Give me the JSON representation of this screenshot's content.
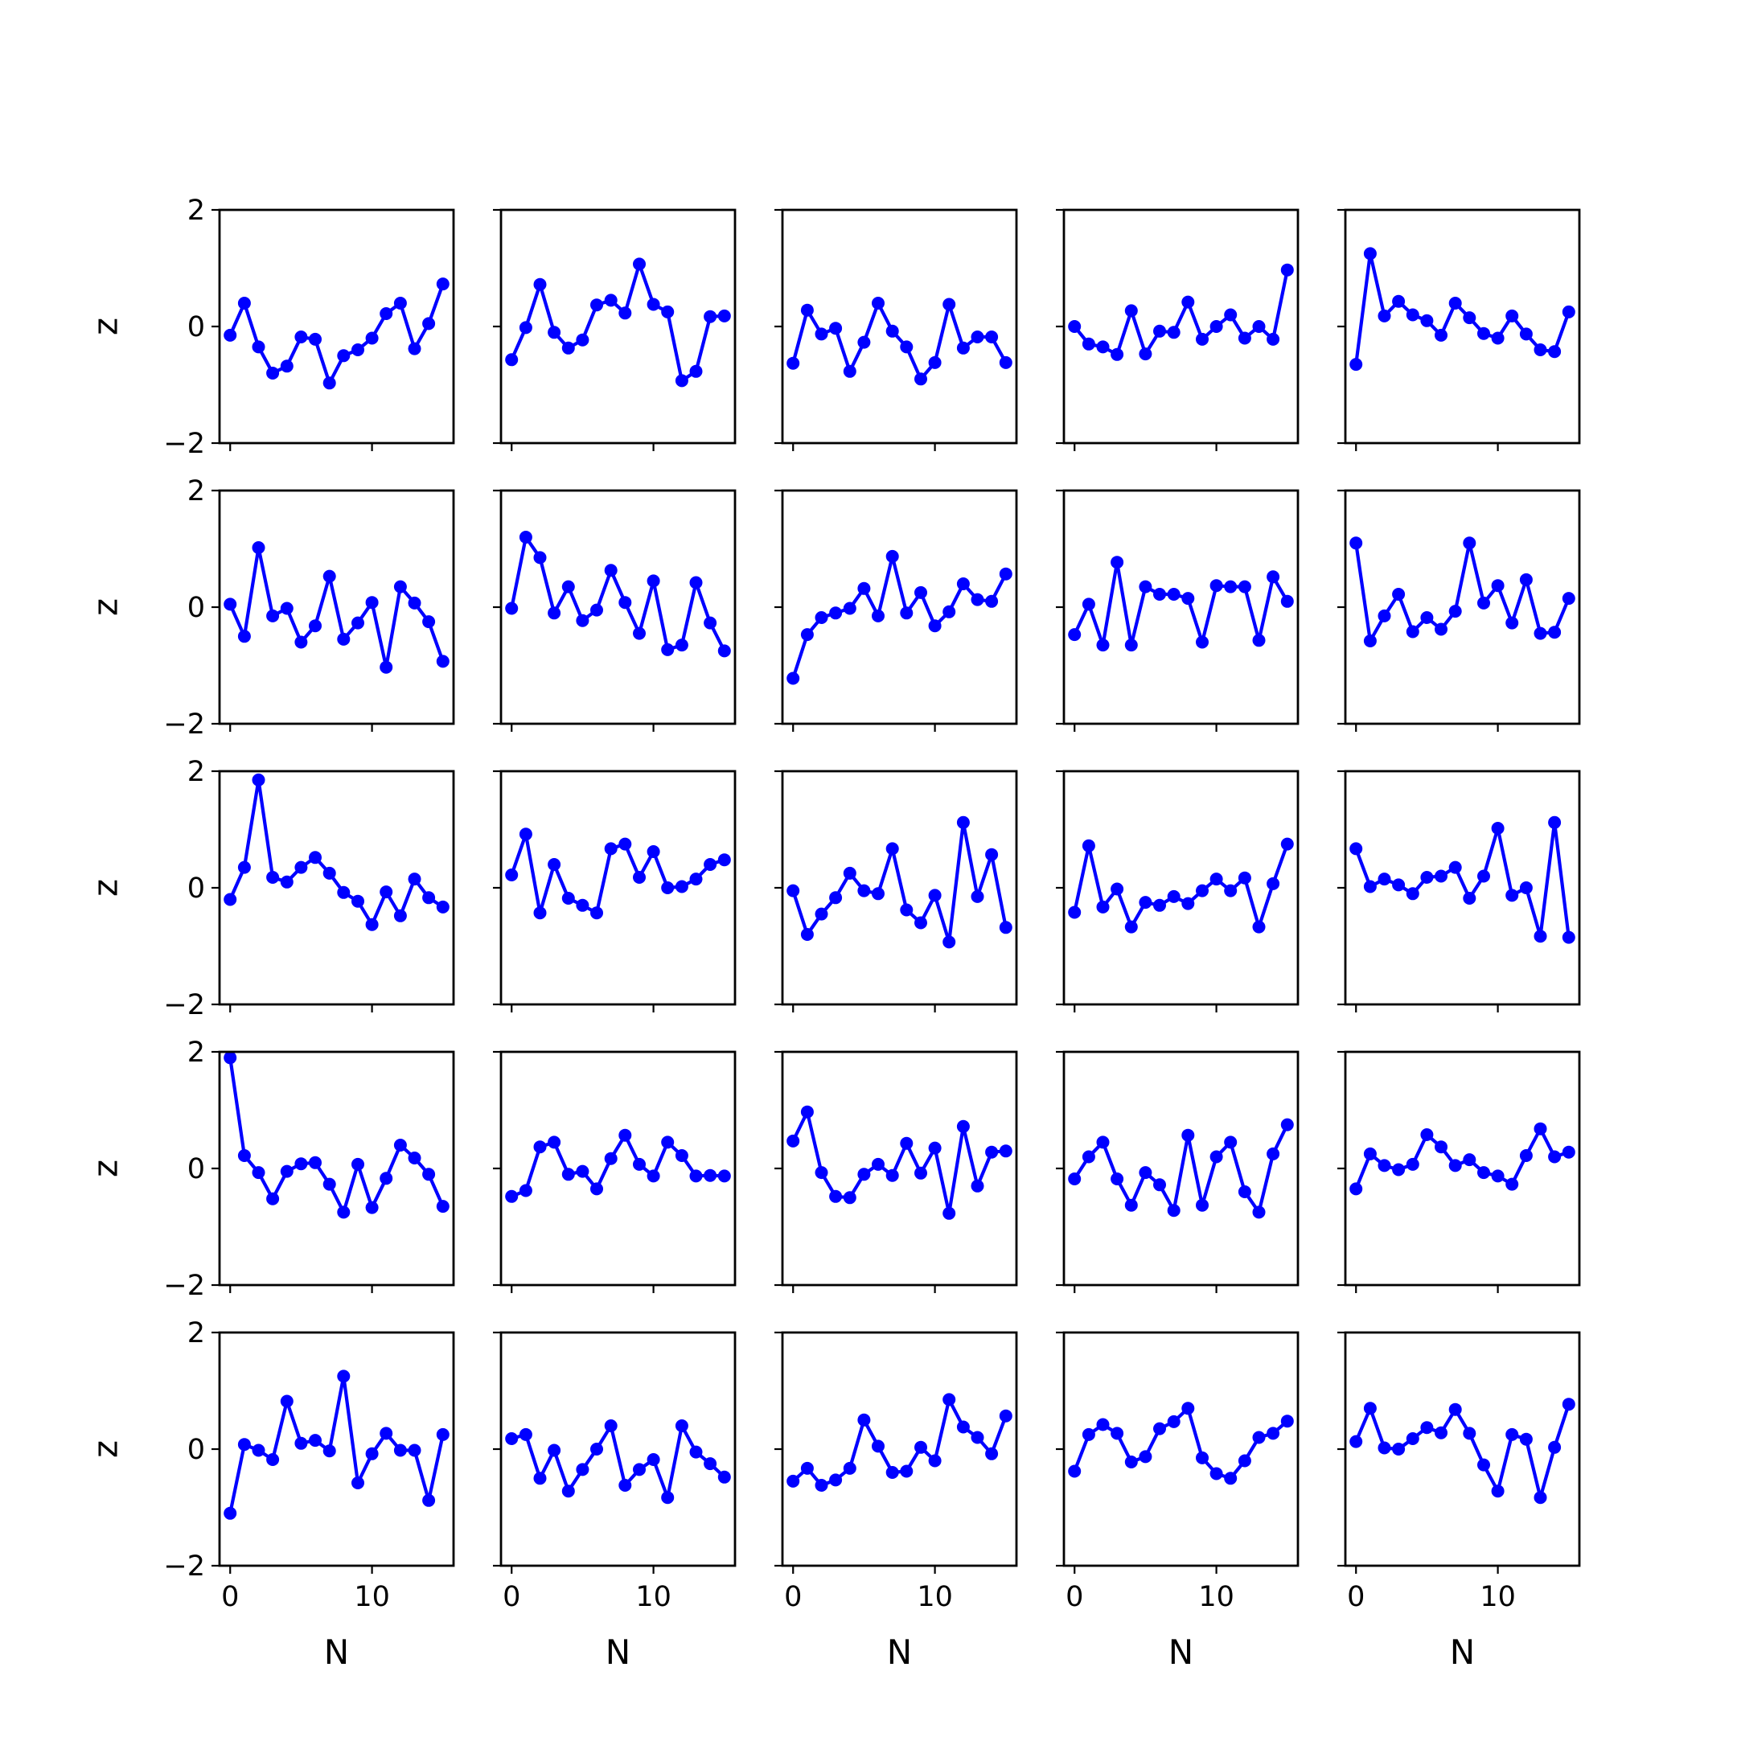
{
  "chart_data": {
    "type": "line",
    "grid": false,
    "rows": 5,
    "cols": 5,
    "xlabel": "N",
    "ylabel": "z",
    "xlim": [
      -0.75,
      15.75
    ],
    "ylim": [
      -2,
      2
    ],
    "xticks": [
      0,
      10
    ],
    "xtick_labels": [
      "0",
      "10"
    ],
    "yticks": [
      -2,
      0,
      2
    ],
    "ytick_labels": [
      "−2",
      "0",
      "2"
    ],
    "line_color": "#0000ff",
    "x": [
      0,
      1,
      2,
      3,
      4,
      5,
      6,
      7,
      8,
      9,
      10,
      11,
      12,
      13,
      14,
      15
    ],
    "panels": [
      {
        "values": [
          -0.15,
          0.4,
          -0.35,
          -0.8,
          -0.68,
          -0.18,
          -0.22,
          -0.97,
          -0.5,
          -0.4,
          -0.2,
          0.22,
          0.4,
          -0.38,
          0.05,
          0.73
        ]
      },
      {
        "values": [
          -0.57,
          -0.02,
          0.72,
          -0.1,
          -0.37,
          -0.23,
          0.37,
          0.45,
          0.23,
          1.07,
          0.38,
          0.25,
          -0.93,
          -0.77,
          0.17,
          0.18
        ]
      },
      {
        "values": [
          -0.63,
          0.28,
          -0.13,
          -0.03,
          -0.77,
          -0.27,
          0.4,
          -0.08,
          -0.35,
          -0.9,
          -0.62,
          0.38,
          -0.37,
          -0.18,
          -0.18,
          -0.62
        ]
      },
      {
        "values": [
          0.0,
          -0.3,
          -0.35,
          -0.48,
          0.27,
          -0.47,
          -0.08,
          -0.1,
          0.42,
          -0.22,
          0.0,
          0.2,
          -0.2,
          0.0,
          -0.22,
          0.97
        ]
      },
      {
        "values": [
          -0.65,
          1.25,
          0.18,
          0.43,
          0.2,
          0.1,
          -0.15,
          0.4,
          0.15,
          -0.12,
          -0.2,
          0.18,
          -0.13,
          -0.4,
          -0.43,
          0.25
        ]
      },
      {
        "values": [
          0.05,
          -0.5,
          1.02,
          -0.15,
          -0.02,
          -0.6,
          -0.32,
          0.53,
          -0.55,
          -0.27,
          0.08,
          -1.03,
          0.35,
          0.07,
          -0.25,
          -0.93
        ]
      },
      {
        "values": [
          -0.02,
          1.2,
          0.85,
          -0.1,
          0.35,
          -0.23,
          -0.05,
          0.63,
          0.08,
          -0.45,
          0.45,
          -0.73,
          -0.65,
          0.42,
          -0.27,
          -0.75
        ]
      },
      {
        "values": [
          -1.22,
          -0.47,
          -0.18,
          -0.1,
          -0.02,
          0.32,
          -0.15,
          0.87,
          -0.1,
          0.25,
          -0.32,
          -0.08,
          0.4,
          0.13,
          0.1,
          0.57
        ]
      },
      {
        "values": [
          -0.47,
          0.05,
          -0.65,
          0.77,
          -0.65,
          0.35,
          0.22,
          0.22,
          0.15,
          -0.6,
          0.37,
          0.35,
          0.35,
          -0.57,
          0.52,
          0.1
        ]
      },
      {
        "values": [
          1.1,
          -0.58,
          -0.15,
          0.22,
          -0.42,
          -0.18,
          -0.38,
          -0.07,
          1.1,
          0.07,
          0.37,
          -0.27,
          0.47,
          -0.45,
          -0.43,
          0.15
        ]
      },
      {
        "values": [
          -0.2,
          0.35,
          1.85,
          0.18,
          0.1,
          0.35,
          0.52,
          0.25,
          -0.08,
          -0.23,
          -0.63,
          -0.07,
          -0.48,
          0.15,
          -0.17,
          -0.33
        ]
      },
      {
        "values": [
          0.22,
          0.92,
          -0.43,
          0.4,
          -0.18,
          -0.3,
          -0.43,
          0.67,
          0.75,
          0.18,
          0.62,
          0.0,
          0.02,
          0.15,
          0.4,
          0.48
        ]
      },
      {
        "values": [
          -0.05,
          -0.8,
          -0.45,
          -0.17,
          0.25,
          -0.05,
          -0.1,
          0.67,
          -0.38,
          -0.6,
          -0.13,
          -0.93,
          1.12,
          -0.15,
          0.57,
          -0.68
        ]
      },
      {
        "values": [
          -0.42,
          0.72,
          -0.33,
          -0.02,
          -0.67,
          -0.25,
          -0.3,
          -0.15,
          -0.27,
          -0.05,
          0.15,
          -0.05,
          0.17,
          -0.67,
          0.07,
          0.75
        ]
      },
      {
        "values": [
          0.67,
          0.02,
          0.15,
          0.05,
          -0.1,
          0.18,
          0.2,
          0.35,
          -0.18,
          0.2,
          1.02,
          -0.13,
          0.0,
          -0.83,
          1.12,
          -0.85
        ]
      },
      {
        "values": [
          1.9,
          0.22,
          -0.07,
          -0.52,
          -0.05,
          0.08,
          0.1,
          -0.27,
          -0.75,
          0.07,
          -0.67,
          -0.17,
          0.4,
          0.18,
          -0.1,
          -0.65
        ]
      },
      {
        "values": [
          -0.48,
          -0.38,
          0.37,
          0.45,
          -0.1,
          -0.05,
          -0.35,
          0.17,
          0.57,
          0.07,
          -0.13,
          0.45,
          0.22,
          -0.13,
          -0.12,
          -0.13
        ]
      },
      {
        "values": [
          0.47,
          0.97,
          -0.07,
          -0.48,
          -0.5,
          -0.1,
          0.07,
          -0.12,
          0.43,
          -0.08,
          0.35,
          -0.77,
          0.72,
          -0.3,
          0.28,
          0.3
        ]
      },
      {
        "values": [
          -0.18,
          0.2,
          0.45,
          -0.18,
          -0.63,
          -0.07,
          -0.28,
          -0.72,
          0.57,
          -0.63,
          0.2,
          0.45,
          -0.4,
          -0.75,
          0.25,
          0.75
        ]
      },
      {
        "values": [
          -0.35,
          0.25,
          0.05,
          -0.02,
          0.07,
          0.58,
          0.37,
          0.05,
          0.15,
          -0.07,
          -0.13,
          -0.27,
          0.22,
          0.68,
          0.2,
          0.28
        ]
      },
      {
        "values": [
          -1.1,
          0.08,
          -0.02,
          -0.18,
          0.82,
          0.1,
          0.15,
          -0.03,
          1.25,
          -0.58,
          -0.08,
          0.27,
          -0.02,
          -0.02,
          -0.88,
          0.25
        ]
      },
      {
        "values": [
          0.18,
          0.25,
          -0.5,
          -0.02,
          -0.72,
          -0.35,
          0.0,
          0.4,
          -0.62,
          -0.35,
          -0.18,
          -0.83,
          0.4,
          -0.05,
          -0.25,
          -0.48
        ]
      },
      {
        "values": [
          -0.55,
          -0.33,
          -0.62,
          -0.53,
          -0.33,
          0.5,
          0.05,
          -0.4,
          -0.38,
          0.03,
          -0.2,
          0.85,
          0.38,
          0.2,
          -0.08,
          0.57
        ]
      },
      {
        "values": [
          -0.38,
          0.25,
          0.42,
          0.27,
          -0.22,
          -0.13,
          0.35,
          0.47,
          0.7,
          -0.15,
          -0.42,
          -0.5,
          -0.2,
          0.2,
          0.27,
          0.48
        ]
      },
      {
        "values": [
          0.13,
          0.7,
          0.02,
          0.0,
          0.18,
          0.37,
          0.28,
          0.68,
          0.27,
          -0.27,
          -0.72,
          0.25,
          0.17,
          -0.83,
          0.03,
          0.77
        ]
      }
    ]
  }
}
